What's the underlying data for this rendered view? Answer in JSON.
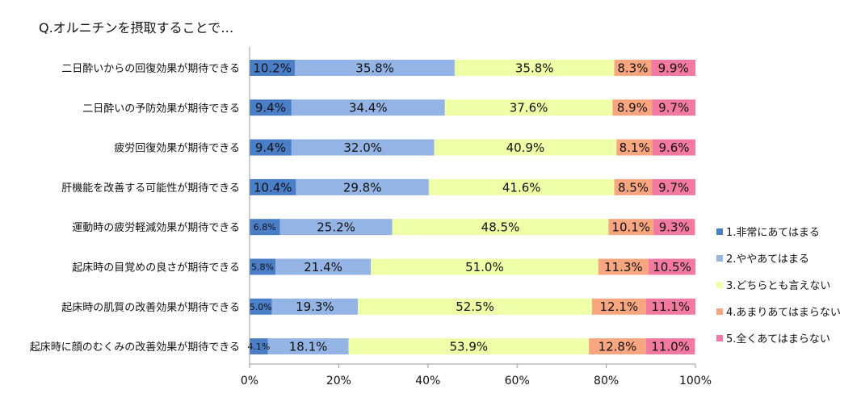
{
  "chart_data": {
    "type": "bar",
    "orientation": "horizontal",
    "stacked": true,
    "percent": true,
    "title": "Q.オルニチンを摂取することで…",
    "xlabel": "",
    "ylabel": "",
    "xlim": [
      0,
      100
    ],
    "xticks": [
      "0%",
      "20%",
      "40%",
      "60%",
      "80%",
      "100%"
    ],
    "grid": false,
    "legend_position": "right",
    "categories": [
      "二日酔いからの回復効果が期待できる",
      "二日酔いの予防効果が期待できる",
      "疲労回復効果が期待できる",
      "肝機能を改善する可能性が期待できる",
      "運動時の疲労軽減効果が期待できる",
      "起床時の目覚めの良さが期待できる",
      "起床時の肌質の改善効果が期待できる",
      "起床時に顔のむくみの改善効果が期待できる"
    ],
    "series": [
      {
        "name": "1.非常にあてはまる",
        "color": "#4a7fc8",
        "values": [
          10.2,
          9.4,
          9.4,
          10.4,
          6.8,
          5.8,
          5.0,
          4.1
        ]
      },
      {
        "name": "2.ややあてはまる",
        "color": "#93b4e4",
        "values": [
          35.8,
          34.4,
          32.0,
          29.8,
          25.2,
          21.4,
          19.3,
          18.1
        ]
      },
      {
        "name": "3.どちらとも言えない",
        "color": "#eeffa8",
        "values": [
          35.8,
          37.6,
          40.9,
          41.6,
          48.5,
          51.0,
          52.5,
          53.9
        ]
      },
      {
        "name": "4.あまりあてはまらない",
        "color": "#f7a67f",
        "values": [
          8.3,
          8.9,
          8.1,
          8.5,
          10.1,
          11.3,
          12.1,
          12.8
        ]
      },
      {
        "name": "5.全くあてはまらない",
        "color": "#f27aa0",
        "values": [
          9.9,
          9.7,
          9.6,
          9.7,
          9.3,
          10.5,
          11.1,
          11.0
        ]
      }
    ],
    "data_labels": [
      [
        "10.2%",
        "35.8%",
        "35.8%",
        "8.3%",
        "9.9%"
      ],
      [
        "9.4%",
        "34.4%",
        "37.6%",
        "8.9%",
        "9.7%"
      ],
      [
        "9.4%",
        "32.0%",
        "40.9%",
        "8.1%",
        "9.6%"
      ],
      [
        "10.4%",
        "29.8%",
        "41.6%",
        "8.5%",
        "9.7%"
      ],
      [
        "6.8%",
        "25.2%",
        "48.5%",
        "10.1%",
        "9.3%"
      ],
      [
        "5.8%",
        "21.4%",
        "51.0%",
        "11.3%",
        "10.5%"
      ],
      [
        "5.0%",
        "19.3%",
        "52.5%",
        "12.1%",
        "11.1%"
      ],
      [
        "4.1%",
        "18.1%",
        "53.9%",
        "12.8%",
        "11.0%"
      ]
    ]
  }
}
